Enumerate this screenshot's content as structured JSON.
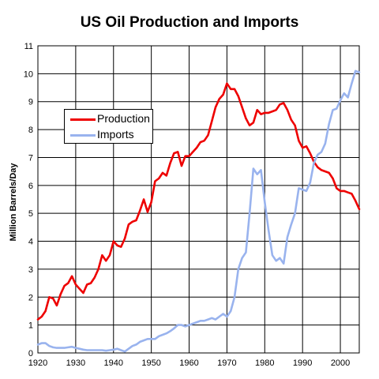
{
  "chart_data": {
    "type": "line",
    "title": "US Oil Production and Imports",
    "xlabel": "",
    "ylabel": "Million Barrels/Day",
    "xlim": [
      1920,
      2005
    ],
    "ylim": [
      0,
      11
    ],
    "x_ticks": [
      1920,
      1930,
      1940,
      1950,
      1960,
      1970,
      1980,
      1990,
      2000
    ],
    "y_ticks": [
      0,
      1,
      2,
      3,
      4,
      5,
      6,
      7,
      8,
      9,
      10,
      11
    ],
    "grid": true,
    "legend_position": "upper-left",
    "series": [
      {
        "name": "Production",
        "color": "#ee0000",
        "points": [
          [
            1920,
            1.2
          ],
          [
            1921,
            1.3
          ],
          [
            1922,
            1.5
          ],
          [
            1923,
            2.0
          ],
          [
            1924,
            1.95
          ],
          [
            1925,
            1.7
          ],
          [
            1926,
            2.1
          ],
          [
            1927,
            2.4
          ],
          [
            1928,
            2.5
          ],
          [
            1929,
            2.75
          ],
          [
            1930,
            2.45
          ],
          [
            1931,
            2.3
          ],
          [
            1932,
            2.15
          ],
          [
            1933,
            2.45
          ],
          [
            1934,
            2.5
          ],
          [
            1935,
            2.7
          ],
          [
            1936,
            3.0
          ],
          [
            1937,
            3.5
          ],
          [
            1938,
            3.3
          ],
          [
            1939,
            3.5
          ],
          [
            1940,
            4.0
          ],
          [
            1941,
            3.85
          ],
          [
            1942,
            3.8
          ],
          [
            1943,
            4.1
          ],
          [
            1944,
            4.6
          ],
          [
            1945,
            4.7
          ],
          [
            1946,
            4.75
          ],
          [
            1947,
            5.1
          ],
          [
            1948,
            5.5
          ],
          [
            1949,
            5.05
          ],
          [
            1950,
            5.4
          ],
          [
            1951,
            6.15
          ],
          [
            1952,
            6.25
          ],
          [
            1953,
            6.45
          ],
          [
            1954,
            6.35
          ],
          [
            1955,
            6.8
          ],
          [
            1956,
            7.15
          ],
          [
            1957,
            7.2
          ],
          [
            1958,
            6.7
          ],
          [
            1959,
            7.05
          ],
          [
            1960,
            7.05
          ],
          [
            1961,
            7.2
          ],
          [
            1962,
            7.35
          ],
          [
            1963,
            7.55
          ],
          [
            1964,
            7.6
          ],
          [
            1965,
            7.8
          ],
          [
            1966,
            8.3
          ],
          [
            1967,
            8.8
          ],
          [
            1968,
            9.1
          ],
          [
            1969,
            9.25
          ],
          [
            1970,
            9.65
          ],
          [
            1971,
            9.45
          ],
          [
            1972,
            9.45
          ],
          [
            1973,
            9.2
          ],
          [
            1974,
            8.8
          ],
          [
            1975,
            8.4
          ],
          [
            1976,
            8.15
          ],
          [
            1977,
            8.25
          ],
          [
            1978,
            8.7
          ],
          [
            1979,
            8.55
          ],
          [
            1980,
            8.6
          ],
          [
            1981,
            8.6
          ],
          [
            1982,
            8.65
          ],
          [
            1983,
            8.7
          ],
          [
            1984,
            8.9
          ],
          [
            1985,
            8.95
          ],
          [
            1986,
            8.7
          ],
          [
            1987,
            8.35
          ],
          [
            1988,
            8.15
          ],
          [
            1989,
            7.6
          ],
          [
            1990,
            7.35
          ],
          [
            1991,
            7.4
          ],
          [
            1992,
            7.15
          ],
          [
            1993,
            6.85
          ],
          [
            1994,
            6.65
          ],
          [
            1995,
            6.55
          ],
          [
            1996,
            6.5
          ],
          [
            1997,
            6.45
          ],
          [
            1998,
            6.25
          ],
          [
            1999,
            5.9
          ],
          [
            2000,
            5.8
          ],
          [
            2001,
            5.8
          ],
          [
            2002,
            5.75
          ],
          [
            2003,
            5.7
          ],
          [
            2004,
            5.45
          ],
          [
            2005,
            5.15
          ]
        ]
      },
      {
        "name": "Imports",
        "color": "#99b3ee",
        "points": [
          [
            1920,
            0.3
          ],
          [
            1921,
            0.35
          ],
          [
            1922,
            0.35
          ],
          [
            1923,
            0.25
          ],
          [
            1924,
            0.2
          ],
          [
            1925,
            0.18
          ],
          [
            1926,
            0.18
          ],
          [
            1927,
            0.18
          ],
          [
            1928,
            0.2
          ],
          [
            1929,
            0.22
          ],
          [
            1930,
            0.18
          ],
          [
            1931,
            0.15
          ],
          [
            1932,
            0.12
          ],
          [
            1933,
            0.1
          ],
          [
            1934,
            0.1
          ],
          [
            1935,
            0.1
          ],
          [
            1936,
            0.1
          ],
          [
            1937,
            0.1
          ],
          [
            1938,
            0.08
          ],
          [
            1939,
            0.1
          ],
          [
            1940,
            0.12
          ],
          [
            1941,
            0.15
          ],
          [
            1942,
            0.1
          ],
          [
            1943,
            0.05
          ],
          [
            1944,
            0.15
          ],
          [
            1945,
            0.25
          ],
          [
            1946,
            0.3
          ],
          [
            1947,
            0.4
          ],
          [
            1948,
            0.45
          ],
          [
            1949,
            0.5
          ],
          [
            1950,
            0.5
          ],
          [
            1951,
            0.5
          ],
          [
            1952,
            0.6
          ],
          [
            1953,
            0.65
          ],
          [
            1954,
            0.7
          ],
          [
            1955,
            0.78
          ],
          [
            1956,
            0.88
          ],
          [
            1957,
            1.0
          ],
          [
            1958,
            1.0
          ],
          [
            1959,
            0.95
          ],
          [
            1960,
            1.0
          ],
          [
            1961,
            1.05
          ],
          [
            1962,
            1.1
          ],
          [
            1963,
            1.15
          ],
          [
            1964,
            1.15
          ],
          [
            1965,
            1.2
          ],
          [
            1966,
            1.25
          ],
          [
            1967,
            1.2
          ],
          [
            1968,
            1.3
          ],
          [
            1969,
            1.4
          ],
          [
            1970,
            1.3
          ],
          [
            1971,
            1.5
          ],
          [
            1972,
            2.0
          ],
          [
            1973,
            3.0
          ],
          [
            1974,
            3.4
          ],
          [
            1975,
            3.6
          ],
          [
            1976,
            5.0
          ],
          [
            1977,
            6.6
          ],
          [
            1978,
            6.4
          ],
          [
            1979,
            6.55
          ],
          [
            1980,
            5.4
          ],
          [
            1981,
            4.4
          ],
          [
            1982,
            3.5
          ],
          [
            1983,
            3.3
          ],
          [
            1984,
            3.4
          ],
          [
            1985,
            3.2
          ],
          [
            1986,
            4.15
          ],
          [
            1987,
            4.6
          ],
          [
            1988,
            5.0
          ],
          [
            1989,
            5.9
          ],
          [
            1990,
            5.85
          ],
          [
            1991,
            5.8
          ],
          [
            1992,
            6.1
          ],
          [
            1993,
            6.8
          ],
          [
            1994,
            7.1
          ],
          [
            1995,
            7.2
          ],
          [
            1996,
            7.5
          ],
          [
            1997,
            8.2
          ],
          [
            1998,
            8.7
          ],
          [
            1999,
            8.75
          ],
          [
            2000,
            9.05
          ],
          [
            2001,
            9.3
          ],
          [
            2002,
            9.15
          ],
          [
            2003,
            9.65
          ],
          [
            2004,
            10.1
          ],
          [
            2005,
            10.05
          ]
        ]
      }
    ]
  }
}
